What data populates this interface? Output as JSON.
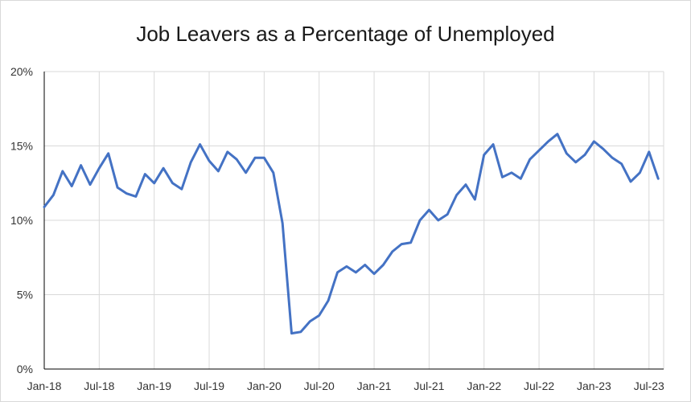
{
  "chart_data": {
    "type": "line",
    "title": "Job Leavers as a Percentage of Unemployed",
    "xlabel": "",
    "ylabel": "",
    "ylim": [
      0,
      20
    ],
    "y_ticks": [
      "0%",
      "5%",
      "10%",
      "15%",
      "20%"
    ],
    "x_ticks": [
      "Jan-18",
      "Jul-18",
      "Jan-19",
      "Jul-19",
      "Jan-20",
      "Jul-20",
      "Jan-21",
      "Jul-21",
      "Jan-22",
      "Jul-22",
      "Jan-23",
      "Jul-23"
    ],
    "grid": true,
    "legend": "none",
    "colors": {
      "line": "#4472c4",
      "grid": "#d9d9d9",
      "axis": "#000000"
    },
    "x": [
      "2018-01",
      "2018-02",
      "2018-03",
      "2018-04",
      "2018-05",
      "2018-06",
      "2018-07",
      "2018-08",
      "2018-09",
      "2018-10",
      "2018-11",
      "2018-12",
      "2019-01",
      "2019-02",
      "2019-03",
      "2019-04",
      "2019-05",
      "2019-06",
      "2019-07",
      "2019-08",
      "2019-09",
      "2019-10",
      "2019-11",
      "2019-12",
      "2020-01",
      "2020-02",
      "2020-03",
      "2020-04",
      "2020-05",
      "2020-06",
      "2020-07",
      "2020-08",
      "2020-09",
      "2020-10",
      "2020-11",
      "2020-12",
      "2021-01",
      "2021-02",
      "2021-03",
      "2021-04",
      "2021-05",
      "2021-06",
      "2021-07",
      "2021-08",
      "2021-09",
      "2021-10",
      "2021-11",
      "2021-12",
      "2022-01",
      "2022-02",
      "2022-03",
      "2022-04",
      "2022-05",
      "2022-06",
      "2022-07",
      "2022-08",
      "2022-09",
      "2022-10",
      "2022-11",
      "2022-12",
      "2023-01",
      "2023-02",
      "2023-03",
      "2023-04",
      "2023-05",
      "2023-06",
      "2023-07",
      "2023-08"
    ],
    "values": [
      10.9,
      11.7,
      13.3,
      12.3,
      13.7,
      12.4,
      13.5,
      14.5,
      12.2,
      11.8,
      11.6,
      13.1,
      12.5,
      13.5,
      12.5,
      12.1,
      13.9,
      15.1,
      14.0,
      13.3,
      14.6,
      14.1,
      13.2,
      14.2,
      14.2,
      13.2,
      9.8,
      2.4,
      2.5,
      3.2,
      3.6,
      4.6,
      6.5,
      6.9,
      6.5,
      7.0,
      6.4,
      7.0,
      7.9,
      8.4,
      8.5,
      10.0,
      10.7,
      10.0,
      10.4,
      11.7,
      12.4,
      11.4,
      14.4,
      15.1,
      12.9,
      13.2,
      12.8,
      14.1,
      14.7,
      15.3,
      15.8,
      14.5,
      13.9,
      14.4,
      15.3,
      14.8,
      14.2,
      13.8,
      12.6,
      13.2,
      14.6,
      12.8
    ]
  }
}
